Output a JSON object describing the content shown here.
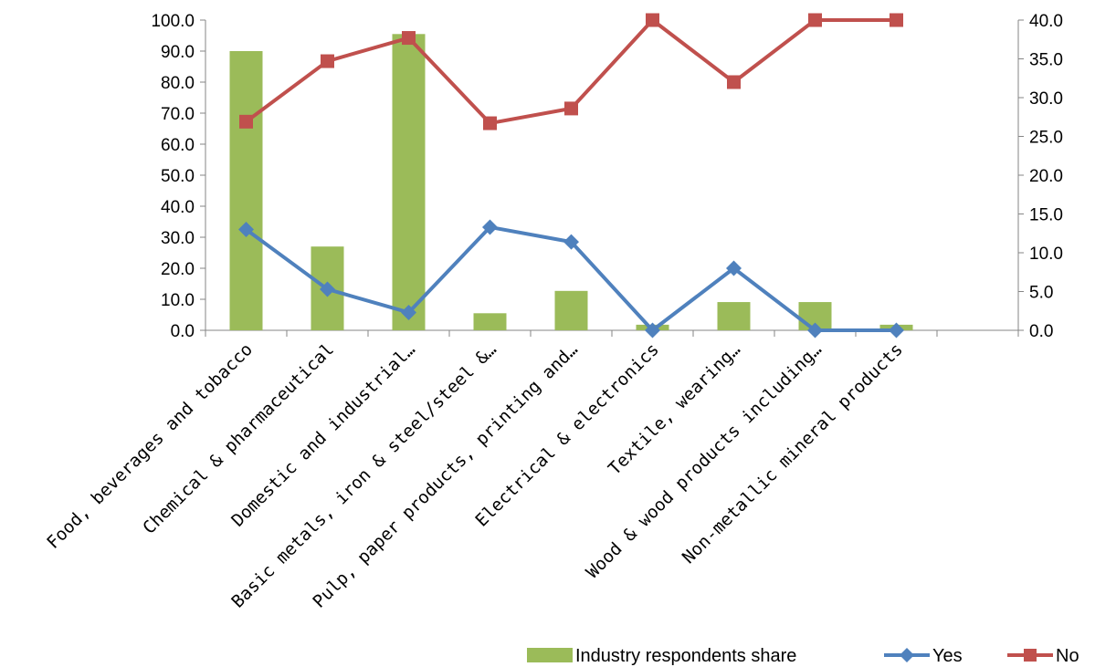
{
  "chart_data": {
    "type": "bar",
    "categories": [
      "Food, beverages and tobacco",
      "Chemical & pharmaceutical",
      "Domestic and industrial…",
      "Basic metals, iron & steel/steel &…",
      "Pulp, paper products, printing and…",
      "Electrical & electronics",
      "Textile, wearing…",
      "Wood & wood products including…",
      "Non-metallic mineral products",
      ""
    ],
    "left_axis": {
      "ylim": [
        0,
        100
      ],
      "ticks": [
        "0.0",
        "10.0",
        "20.0",
        "30.0",
        "40.0",
        "50.0",
        "60.0",
        "70.0",
        "80.0",
        "90.0",
        "100.0"
      ]
    },
    "right_axis": {
      "ylim": [
        0,
        40
      ],
      "ticks": [
        "0.0",
        "5.0",
        "10.0",
        "15.0",
        "20.0",
        "25.0",
        "30.0",
        "35.0",
        "40.0"
      ]
    },
    "series": [
      {
        "name": "Industry respondents share",
        "type": "bar",
        "axis": "left",
        "color": "#9bbb59",
        "values": [
          90,
          27,
          95.5,
          5.5,
          12.7,
          1.8,
          9.1,
          9.1,
          1.8,
          null
        ]
      },
      {
        "name": "Yes",
        "type": "line",
        "axis": "right",
        "color": "#4f81bd",
        "marker": "diamond",
        "values": [
          13.0,
          5.3,
          2.3,
          13.3,
          11.4,
          0.0,
          8.0,
          0.0,
          0.0,
          null
        ]
      },
      {
        "name": "No",
        "type": "line",
        "axis": "right",
        "color": "#c0504d",
        "marker": "square",
        "values": [
          26.9,
          34.7,
          37.7,
          26.7,
          28.6,
          40.0,
          32.0,
          40.0,
          40.0,
          null
        ]
      }
    ],
    "legend": {
      "position": "bottom-right"
    },
    "grid": false
  }
}
